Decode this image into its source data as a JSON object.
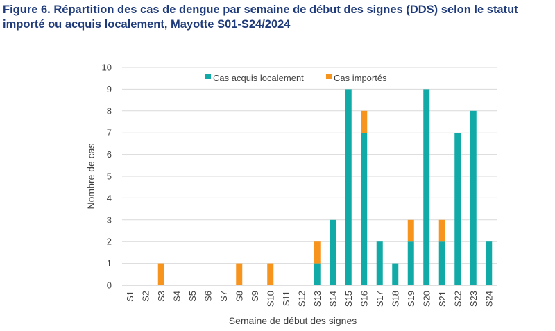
{
  "title": {
    "line1": "Figure 6. Répartition des cas de dengue par semaine de début des signes (DDS) selon le statut",
    "line2": "importé ou acquis localement, Mayotte S01-S24/2024"
  },
  "colors": {
    "local": "#12aaa6",
    "imported": "#f7941d",
    "grid": "#d9d9d9",
    "text": "#404040",
    "title": "#1f3b7a"
  },
  "chart_data": {
    "type": "bar",
    "stacked": true,
    "title": "",
    "xlabel": "Semaine de début des signes",
    "ylabel": "Nombre de cas",
    "ylim": [
      0,
      10
    ],
    "yticks": [
      0,
      1,
      2,
      3,
      4,
      5,
      6,
      7,
      8,
      9,
      10
    ],
    "grid": true,
    "legend_position": "top",
    "categories": [
      "S1",
      "S2",
      "S3",
      "S4",
      "S5",
      "S6",
      "S7",
      "S8",
      "S9",
      "S10",
      "S11",
      "S12",
      "S13",
      "S14",
      "S15",
      "S16",
      "S17",
      "S18",
      "S19",
      "S20",
      "S21",
      "S22",
      "S23",
      "S24"
    ],
    "series": [
      {
        "name": "Cas acquis localement",
        "color": "#12aaa6",
        "values": [
          0,
          0,
          0,
          0,
          0,
          0,
          0,
          0,
          0,
          0,
          0,
          0,
          1,
          3,
          9,
          7,
          2,
          1,
          2,
          9,
          2,
          7,
          8,
          2
        ]
      },
      {
        "name": "Cas importés",
        "color": "#f7941d",
        "values": [
          0,
          0,
          1,
          0,
          0,
          0,
          0,
          1,
          0,
          1,
          0,
          0,
          1,
          0,
          0,
          1,
          0,
          0,
          1,
          0,
          1,
          0,
          0,
          0
        ]
      }
    ]
  }
}
